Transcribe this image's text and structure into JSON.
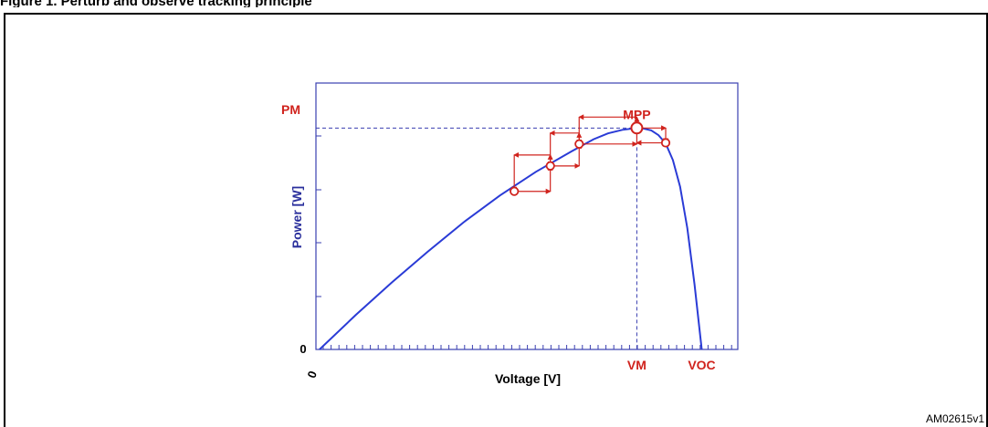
{
  "page": {
    "caption": "Figure 1. Perturb and observe tracking principle",
    "figure_id": "AM02615v1"
  },
  "chart_data": {
    "type": "line",
    "xlabel": "Voltage [V]",
    "ylabel": "Power [W]",
    "x_origin_label": "0",
    "y_origin_label": "0",
    "x_marks": [
      "VM",
      "VOC"
    ],
    "y_marks": [
      "PM"
    ],
    "mpp_label": "MPP",
    "colors": {
      "curve": "#2a3bd6",
      "axes": "#3a3fb0",
      "annotation": "#d0231d"
    },
    "series": [
      {
        "values": [
          [
            0,
            0
          ],
          [
            5,
            0.58
          ],
          [
            10,
            1.13
          ],
          [
            15,
            1.65
          ],
          [
            20,
            2.15
          ],
          [
            25,
            2.6
          ],
          [
            30,
            3.0
          ],
          [
            35,
            3.35
          ],
          [
            38,
            3.55
          ],
          [
            40,
            3.65
          ],
          [
            42,
            3.71
          ],
          [
            44,
            3.74
          ],
          [
            45,
            3.73
          ],
          [
            46,
            3.7
          ],
          [
            47,
            3.62
          ],
          [
            48,
            3.48
          ],
          [
            49,
            3.2
          ],
          [
            50,
            2.75
          ],
          [
            51,
            2.05
          ],
          [
            52,
            1.1
          ],
          [
            53,
            0
          ]
        ]
      }
    ],
    "xlim": [
      -0.5,
      58
    ],
    "ylim": [
      0,
      4.5
    ],
    "mpp_point": [
      44,
      3.74
    ],
    "operating_points": [
      [
        27,
        2.67
      ],
      [
        32,
        3.1
      ],
      [
        36,
        3.47
      ],
      [
        48,
        3.49
      ]
    ]
  }
}
